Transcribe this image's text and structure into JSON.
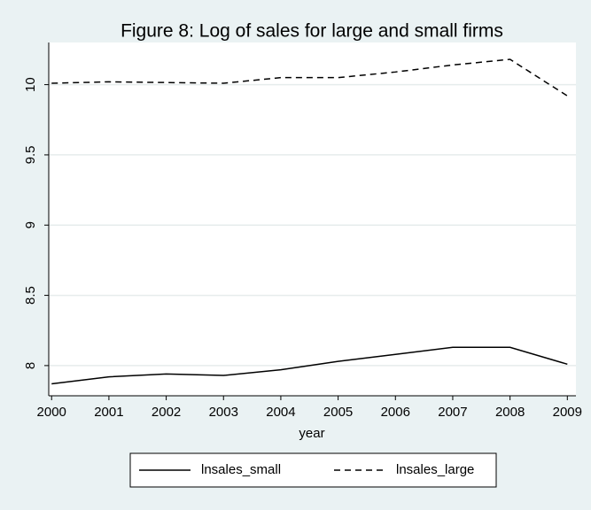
{
  "chart_data": {
    "type": "line",
    "title": "Figure 8: Log of sales  for large and small firms",
    "x_label": "year",
    "x": [
      2000,
      2001,
      2002,
      2003,
      2004,
      2005,
      2006,
      2007,
      2008,
      2009
    ],
    "series": [
      {
        "name": "lnsales_small",
        "color": "#000000",
        "dash": "solid",
        "values": [
          7.87,
          7.92,
          7.94,
          7.93,
          7.97,
          8.03,
          8.08,
          8.13,
          8.13,
          8.01
        ]
      },
      {
        "name": "lnsales_large",
        "color": "#000000",
        "dash": "dashed",
        "values": [
          10.01,
          10.02,
          10.015,
          10.01,
          10.05,
          10.05,
          10.09,
          10.14,
          10.18,
          9.92
        ]
      }
    ],
    "xlim": [
      1999.95,
      2009.15
    ],
    "xticks": [
      2000,
      2001,
      2002,
      2003,
      2004,
      2005,
      2006,
      2007,
      2008,
      2009
    ],
    "ylim": [
      7.785,
      10.3
    ],
    "yticks": [
      8,
      8.5,
      9,
      9.5,
      10
    ],
    "grid": true,
    "legend": "bottom"
  }
}
